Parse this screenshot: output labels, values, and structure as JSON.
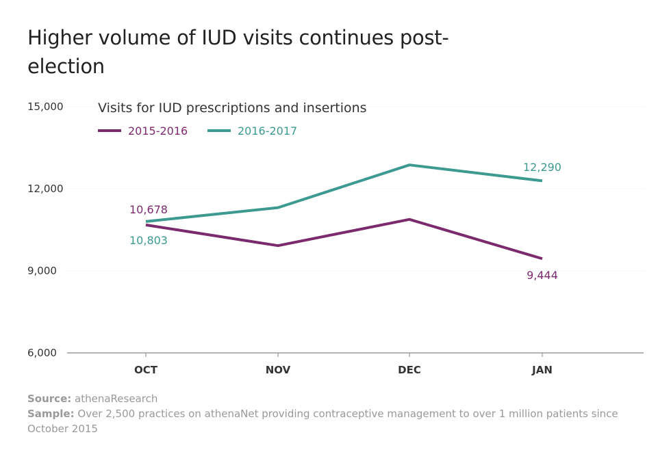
{
  "title": "Higher volume of IUD visits continues post-election",
  "chart_data": {
    "type": "line",
    "subtitle": "Visits for IUD prescriptions and insertions",
    "categories": [
      "OCT",
      "NOV",
      "DEC",
      "JAN"
    ],
    "ylim": [
      6000,
      15000
    ],
    "yticks": [
      6000,
      9000,
      12000,
      15000
    ],
    "ytick_labels": [
      "6,000",
      "9,000",
      "12,000",
      "15,000"
    ],
    "grid": "horizontal dotted",
    "legend": "top-left",
    "series": [
      {
        "name": "2015-2016",
        "color": "#7b2a6e",
        "values": [
          10678,
          9920,
          10880,
          9444
        ],
        "labels": [
          {
            "index": 0,
            "text": "10,678"
          },
          {
            "index": 3,
            "text": "9,444"
          }
        ]
      },
      {
        "name": "2016-2017",
        "color": "#3d9a90",
        "values": [
          10803,
          11310,
          12870,
          12290
        ],
        "labels": [
          {
            "index": 0,
            "text": "10,803"
          },
          {
            "index": 3,
            "text": "12,290"
          }
        ]
      }
    ]
  },
  "footer": {
    "source_label": "Source:",
    "source_text": "athenaResearch",
    "sample_label": "Sample:",
    "sample_text": "Over 2,500 practices on athenaNet providing contraceptive management to over 1 million patients since October 2015"
  }
}
